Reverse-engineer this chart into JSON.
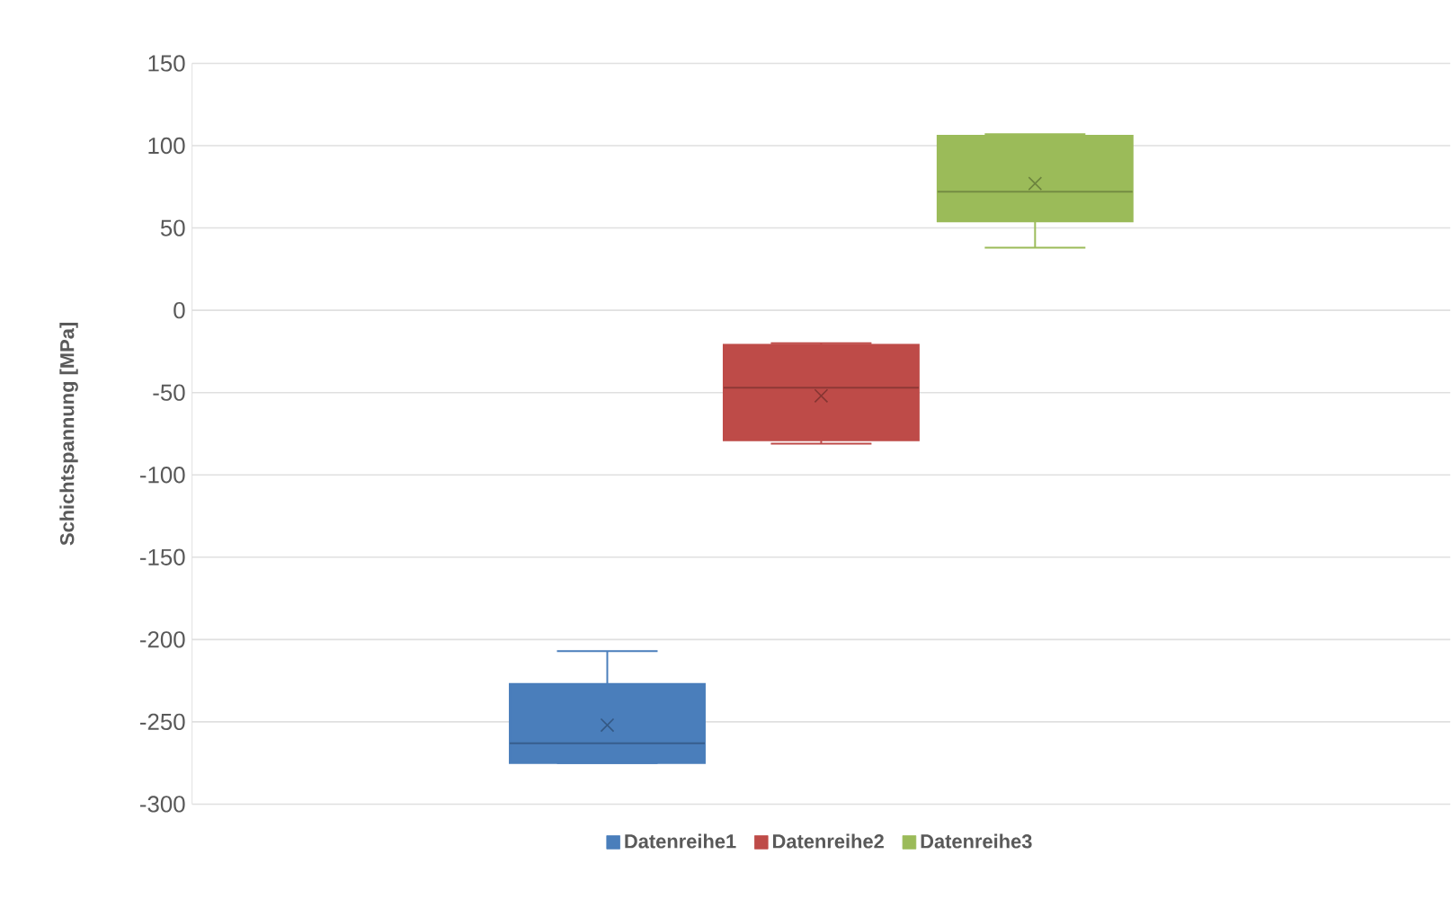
{
  "chart_data": {
    "type": "box",
    "ylabel": "Schichtspannung [MPa]",
    "categories": [
      null
    ],
    "ylim": [
      -300,
      150
    ],
    "yticks": [
      -300,
      -250,
      -200,
      -150,
      -100,
      -50,
      0,
      50,
      100,
      150
    ],
    "grid": "y",
    "legend": "bottom",
    "series": [
      {
        "name": "Datenreihe1",
        "color": "#4a7ebb",
        "boxes": [
          {
            "low": -275,
            "q1": -275,
            "median": -263,
            "q3": -227,
            "high": -207,
            "mean": -252
          }
        ]
      },
      {
        "name": "Datenreihe2",
        "color": "#be4b48",
        "boxes": [
          {
            "low": -81,
            "q1": -79,
            "median": -47,
            "q3": -21,
            "high": -20,
            "mean": -52
          }
        ]
      },
      {
        "name": "Datenreihe3",
        "color": "#9bbb59",
        "boxes": [
          {
            "low": 38,
            "q1": 54,
            "median": 72,
            "q3": 106,
            "high": 107,
            "mean": 77
          }
        ]
      }
    ]
  }
}
